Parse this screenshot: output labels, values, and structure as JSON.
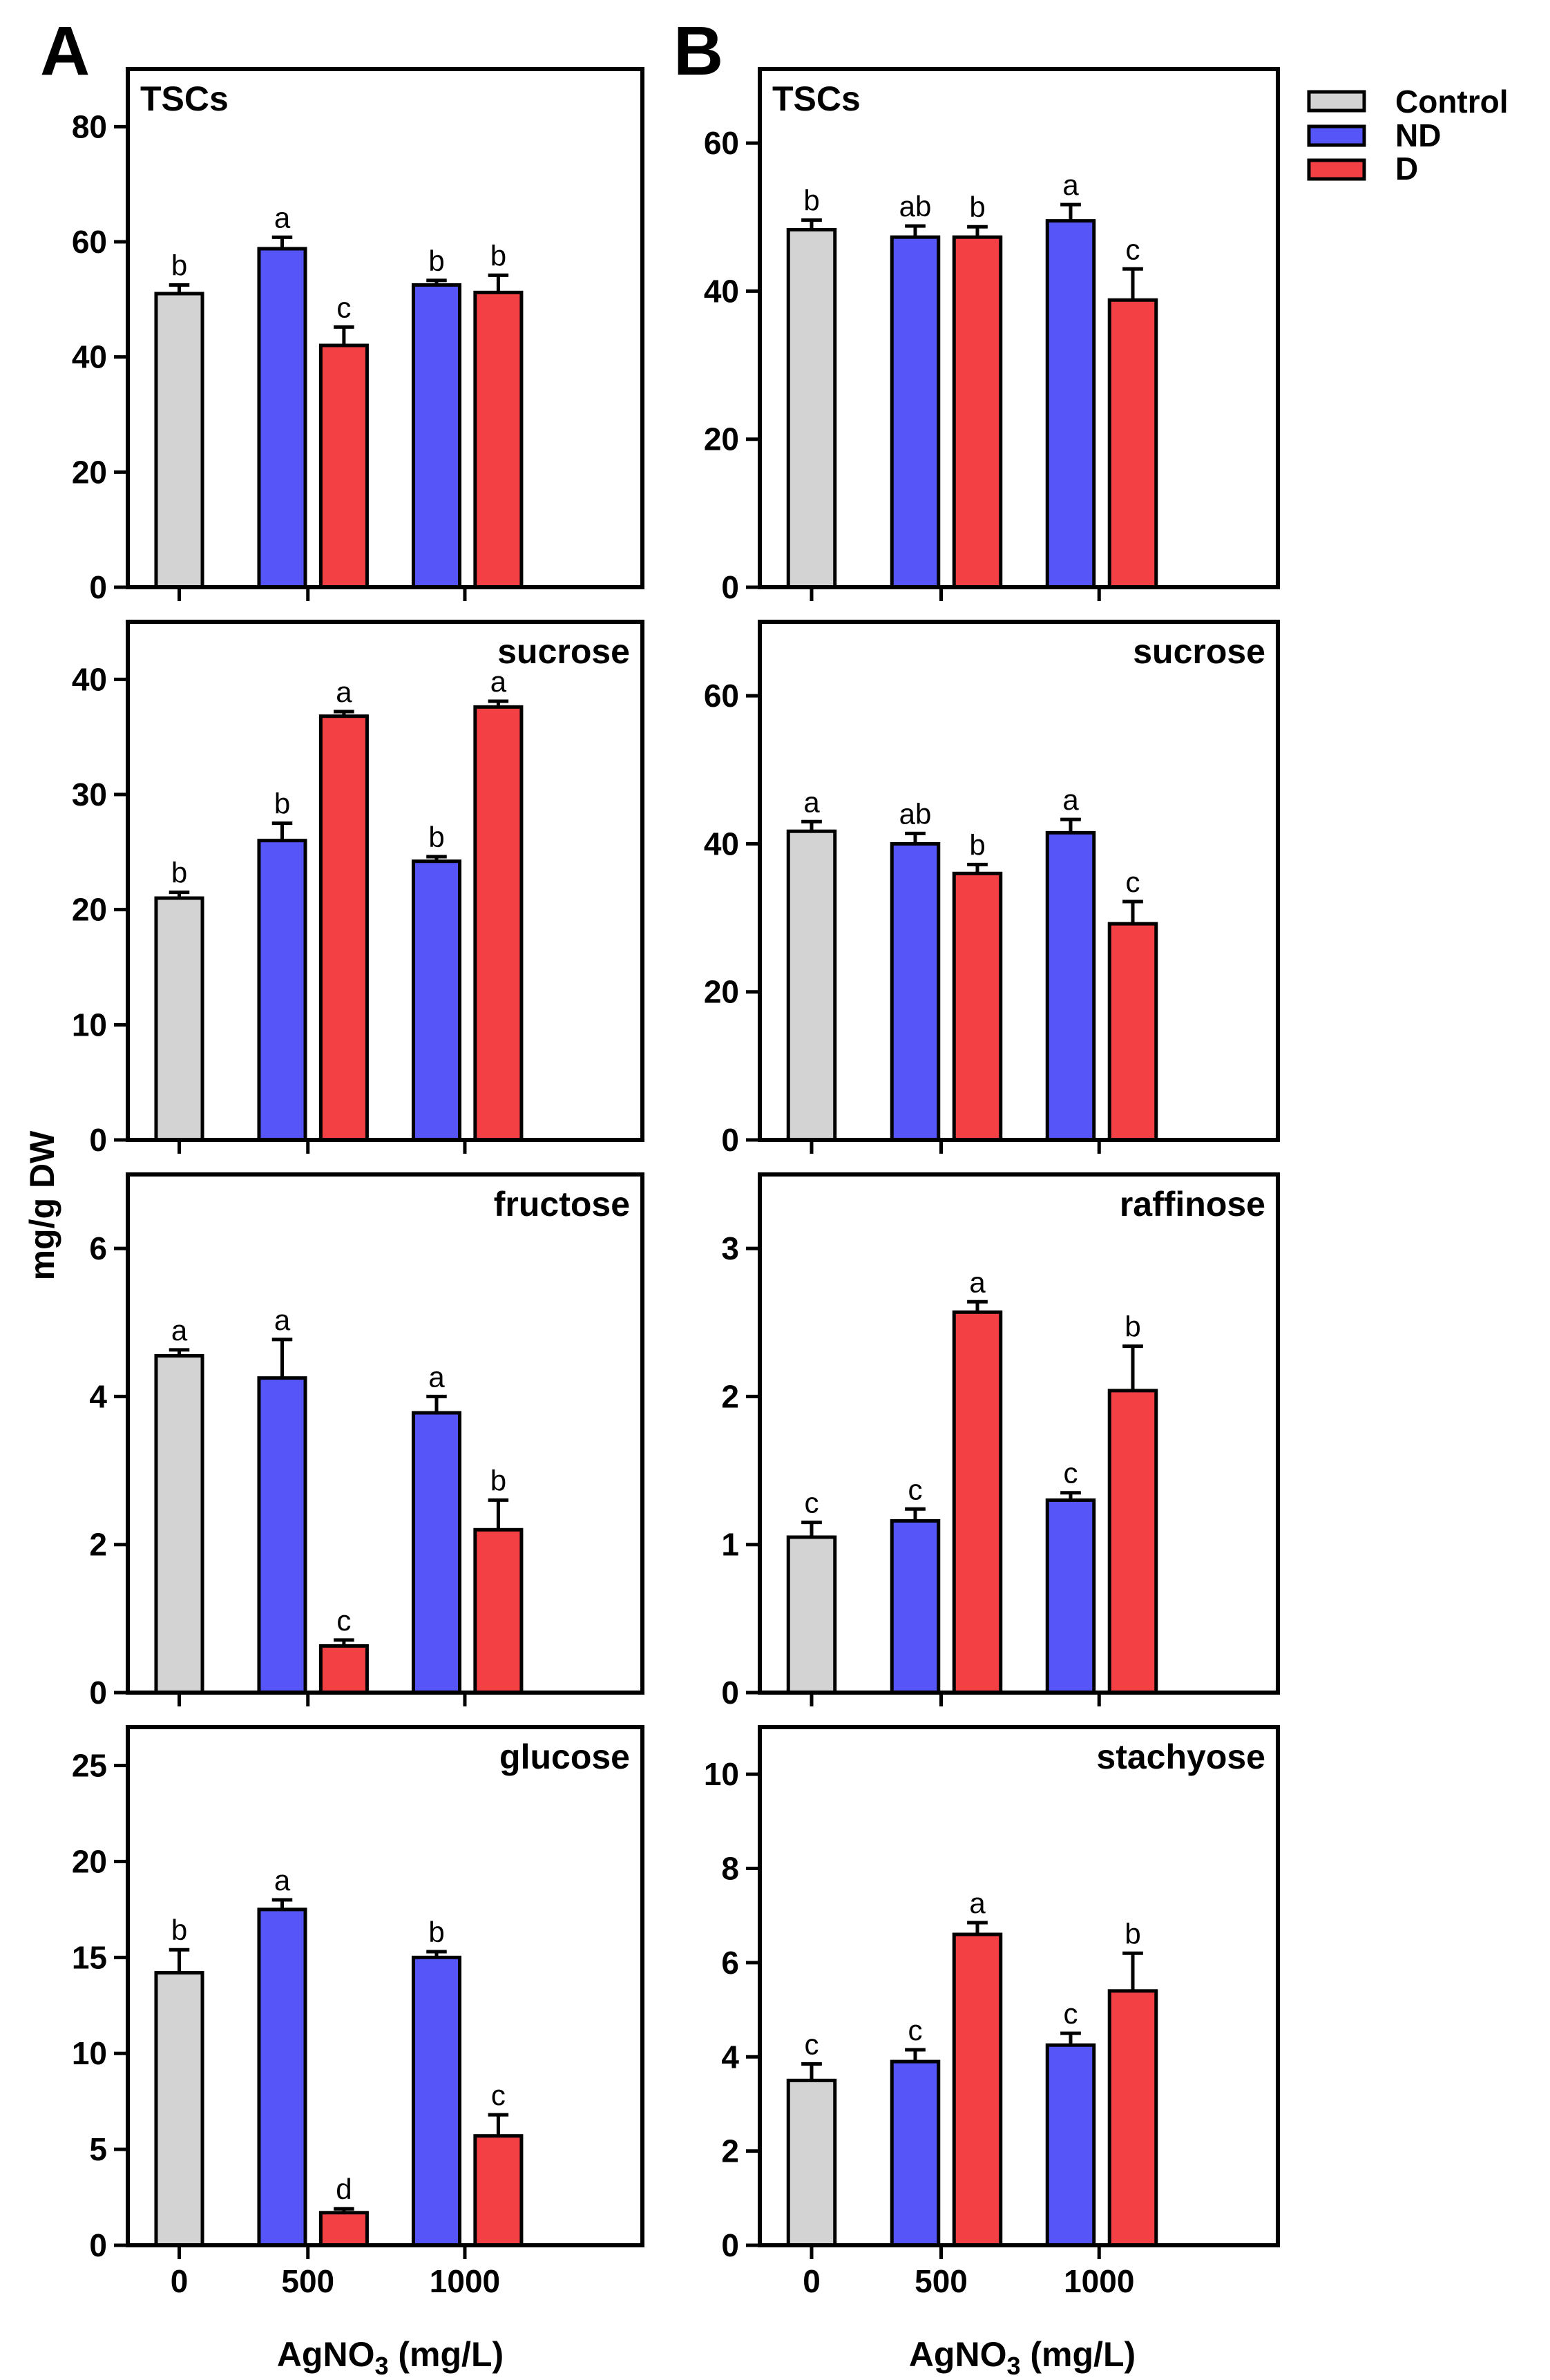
{
  "figure": {
    "panel_labels": [
      "A",
      "B"
    ],
    "ylabel": "mg/g DW",
    "xlabel_main": "AgNO",
    "xlabel_sub": "3",
    "xlabel_suffix": " (mg/L)",
    "x_categories": [
      "0",
      "500",
      "1000"
    ]
  },
  "legend": {
    "items": [
      {
        "label": "Control",
        "color": "#D3D3D3"
      },
      {
        "label": "ND",
        "color": "#5555F8"
      },
      {
        "label": "D",
        "color": "#F24045"
      }
    ]
  },
  "colors": {
    "Control": "#D3D3D3",
    "ND": "#5555F8",
    "D": "#F24045",
    "axis": "#000000"
  },
  "chart_data": [
    {
      "type": "bar",
      "panel": "A",
      "title": "TSCs",
      "title_position": "top-left",
      "ylim": [
        0,
        90
      ],
      "yticks": [
        0,
        20,
        40,
        60,
        80
      ],
      "bars": [
        {
          "group": "0",
          "treatment": "Control",
          "value": 51.0,
          "error": 1.5,
          "sig": "b"
        },
        {
          "group": "500",
          "treatment": "ND",
          "value": 58.8,
          "error": 2.0,
          "sig": "a"
        },
        {
          "group": "500",
          "treatment": "D",
          "value": 42.0,
          "error": 3.2,
          "sig": "c"
        },
        {
          "group": "1000",
          "treatment": "ND",
          "value": 52.5,
          "error": 0.8,
          "sig": "b"
        },
        {
          "group": "1000",
          "treatment": "D",
          "value": 51.2,
          "error": 3.0,
          "sig": "b"
        }
      ]
    },
    {
      "type": "bar",
      "panel": "A",
      "title": "sucrose",
      "title_position": "top-right",
      "ylim": [
        0,
        45
      ],
      "yticks": [
        0,
        10,
        20,
        30,
        40
      ],
      "bars": [
        {
          "group": "0",
          "treatment": "Control",
          "value": 21.0,
          "error": 0.5,
          "sig": "b"
        },
        {
          "group": "500",
          "treatment": "ND",
          "value": 26.0,
          "error": 1.5,
          "sig": "b"
        },
        {
          "group": "500",
          "treatment": "D",
          "value": 36.8,
          "error": 0.4,
          "sig": "a"
        },
        {
          "group": "1000",
          "treatment": "ND",
          "value": 24.2,
          "error": 0.4,
          "sig": "b"
        },
        {
          "group": "1000",
          "treatment": "D",
          "value": 37.6,
          "error": 0.5,
          "sig": "a"
        }
      ]
    },
    {
      "type": "bar",
      "panel": "A",
      "title": "fructose",
      "title_position": "top-right",
      "ylim": [
        0,
        7
      ],
      "yticks": [
        0,
        2,
        4,
        6
      ],
      "bars": [
        {
          "group": "0",
          "treatment": "Control",
          "value": 4.55,
          "error": 0.08,
          "sig": "a"
        },
        {
          "group": "500",
          "treatment": "ND",
          "value": 4.25,
          "error": 0.52,
          "sig": "a"
        },
        {
          "group": "500",
          "treatment": "D",
          "value": 0.63,
          "error": 0.08,
          "sig": "c"
        },
        {
          "group": "1000",
          "treatment": "ND",
          "value": 3.78,
          "error": 0.22,
          "sig": "a"
        },
        {
          "group": "1000",
          "treatment": "D",
          "value": 2.2,
          "error": 0.4,
          "sig": "b"
        }
      ]
    },
    {
      "type": "bar",
      "panel": "A",
      "title": "glucose",
      "title_position": "top-right",
      "ylim": [
        0,
        27
      ],
      "yticks": [
        0,
        5,
        10,
        15,
        20,
        25
      ],
      "bars": [
        {
          "group": "0",
          "treatment": "Control",
          "value": 14.2,
          "error": 1.2,
          "sig": "b"
        },
        {
          "group": "500",
          "treatment": "ND",
          "value": 17.5,
          "error": 0.5,
          "sig": "a"
        },
        {
          "group": "500",
          "treatment": "D",
          "value": 1.7,
          "error": 0.2,
          "sig": "d"
        },
        {
          "group": "1000",
          "treatment": "ND",
          "value": 15.0,
          "error": 0.3,
          "sig": "b"
        },
        {
          "group": "1000",
          "treatment": "D",
          "value": 5.7,
          "error": 1.1,
          "sig": "c"
        }
      ]
    },
    {
      "type": "bar",
      "panel": "B",
      "title": "TSCs",
      "title_position": "top-left",
      "ylim": [
        0,
        70
      ],
      "yticks": [
        0,
        20,
        40,
        60
      ],
      "bars": [
        {
          "group": "0",
          "treatment": "Control",
          "value": 48.3,
          "error": 1.3,
          "sig": "b"
        },
        {
          "group": "500",
          "treatment": "ND",
          "value": 47.3,
          "error": 1.5,
          "sig": "ab"
        },
        {
          "group": "500",
          "treatment": "D",
          "value": 47.3,
          "error": 1.4,
          "sig": "b"
        },
        {
          "group": "1000",
          "treatment": "ND",
          "value": 49.5,
          "error": 2.2,
          "sig": "a"
        },
        {
          "group": "1000",
          "treatment": "D",
          "value": 38.8,
          "error": 4.2,
          "sig": "c"
        }
      ]
    },
    {
      "type": "bar",
      "panel": "B",
      "title": "sucrose",
      "title_position": "top-right",
      "ylim": [
        0,
        70
      ],
      "yticks": [
        0,
        20,
        40,
        60
      ],
      "bars": [
        {
          "group": "0",
          "treatment": "Control",
          "value": 41.7,
          "error": 1.3,
          "sig": "a"
        },
        {
          "group": "500",
          "treatment": "ND",
          "value": 40.0,
          "error": 1.4,
          "sig": "ab"
        },
        {
          "group": "500",
          "treatment": "D",
          "value": 36.0,
          "error": 1.2,
          "sig": "b"
        },
        {
          "group": "1000",
          "treatment": "ND",
          "value": 41.5,
          "error": 1.8,
          "sig": "a"
        },
        {
          "group": "1000",
          "treatment": "D",
          "value": 29.2,
          "error": 3.0,
          "sig": "c"
        }
      ]
    },
    {
      "type": "bar",
      "panel": "B",
      "title": "raffinose",
      "title_position": "top-right",
      "ylim": [
        0,
        3.5
      ],
      "yticks": [
        0,
        1,
        2,
        3
      ],
      "bars": [
        {
          "group": "0",
          "treatment": "Control",
          "value": 1.05,
          "error": 0.1,
          "sig": "c"
        },
        {
          "group": "500",
          "treatment": "ND",
          "value": 1.16,
          "error": 0.08,
          "sig": "c"
        },
        {
          "group": "500",
          "treatment": "D",
          "value": 2.57,
          "error": 0.07,
          "sig": "a"
        },
        {
          "group": "1000",
          "treatment": "ND",
          "value": 1.3,
          "error": 0.05,
          "sig": "c"
        },
        {
          "group": "1000",
          "treatment": "D",
          "value": 2.04,
          "error": 0.3,
          "sig": "b"
        }
      ]
    },
    {
      "type": "bar",
      "panel": "B",
      "title": "stachyose",
      "title_position": "top-right",
      "ylim": [
        0,
        11
      ],
      "yticks": [
        0,
        2,
        4,
        6,
        8,
        10
      ],
      "bars": [
        {
          "group": "0",
          "treatment": "Control",
          "value": 3.5,
          "error": 0.35,
          "sig": "c"
        },
        {
          "group": "500",
          "treatment": "ND",
          "value": 3.9,
          "error": 0.25,
          "sig": "c"
        },
        {
          "group": "500",
          "treatment": "D",
          "value": 6.6,
          "error": 0.25,
          "sig": "a"
        },
        {
          "group": "1000",
          "treatment": "ND",
          "value": 4.25,
          "error": 0.25,
          "sig": "c"
        },
        {
          "group": "1000",
          "treatment": "D",
          "value": 5.4,
          "error": 0.8,
          "sig": "b"
        }
      ]
    }
  ]
}
